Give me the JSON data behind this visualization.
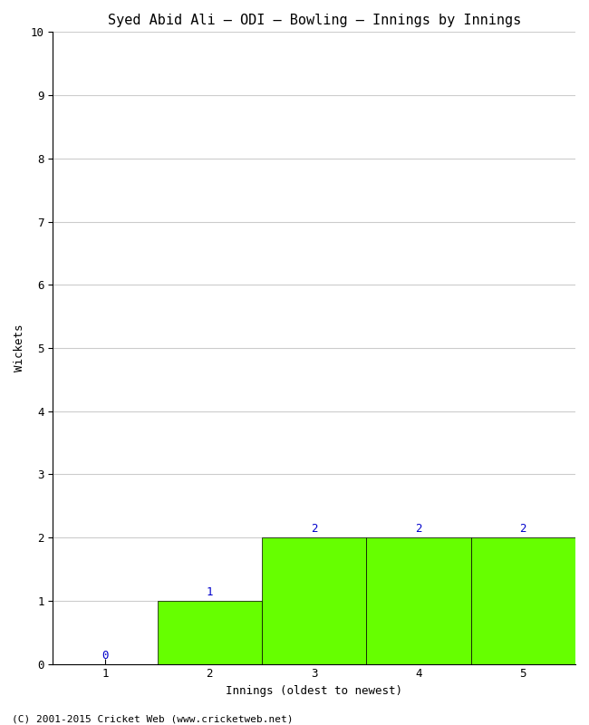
{
  "title": "Syed Abid Ali – ODI – Bowling – Innings by Innings",
  "xlabel": "Innings (oldest to newest)",
  "ylabel": "Wickets",
  "x_values": [
    1,
    2,
    3,
    4,
    5
  ],
  "y_values": [
    0,
    1,
    2,
    2,
    2
  ],
  "bar_color": "#66ff00",
  "bar_edge_color": "#000000",
  "ylim": [
    0,
    10
  ],
  "xlim": [
    0.5,
    5.5
  ],
  "yticks": [
    0,
    1,
    2,
    3,
    4,
    5,
    6,
    7,
    8,
    9,
    10
  ],
  "xticks": [
    1,
    2,
    3,
    4,
    5
  ],
  "background_color": "#ffffff",
  "grid_color": "#cccccc",
  "label_color": "#0000cc",
  "title_fontsize": 11,
  "axis_fontsize": 9,
  "tick_fontsize": 9,
  "annotation_fontsize": 9,
  "footer_text": "(C) 2001-2015 Cricket Web (www.cricketweb.net)",
  "footer_fontsize": 8
}
